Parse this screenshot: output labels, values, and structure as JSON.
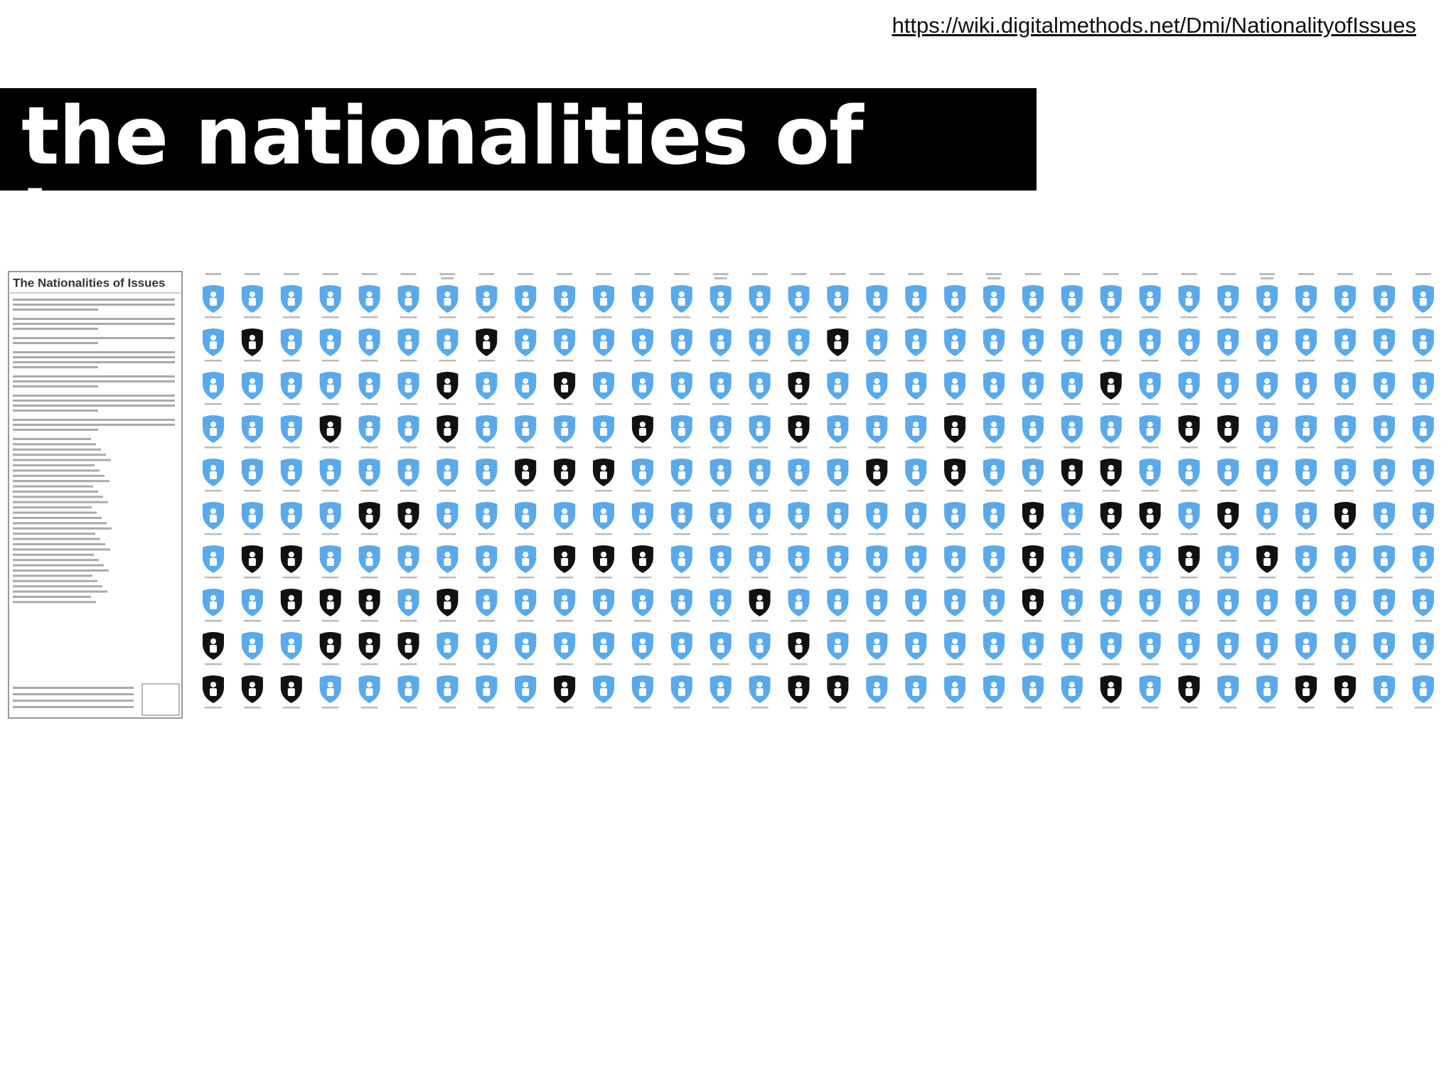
{
  "header": {
    "url": "https://wiki.digitalmethods.net/Dmi/NationalityofIssues",
    "title": "the nationalities of issues"
  },
  "panel": {
    "title": "The Nationalities of Issues"
  }
}
